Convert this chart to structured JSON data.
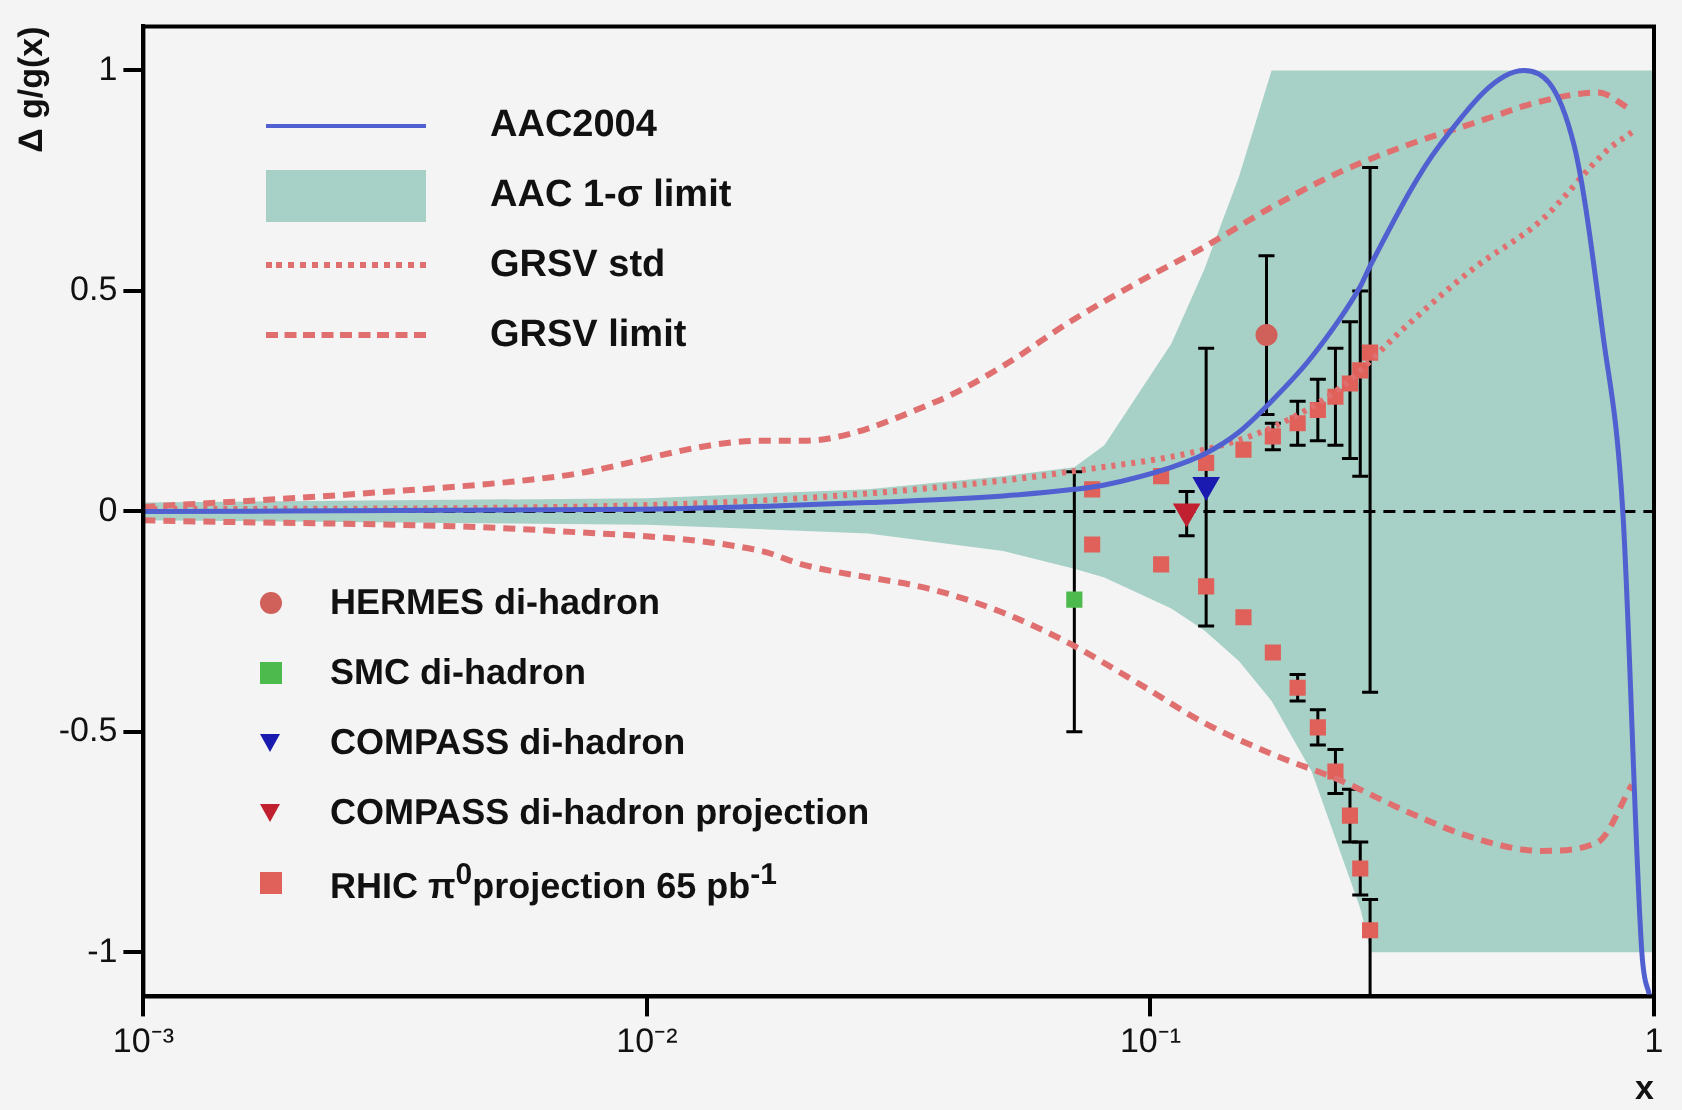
{
  "chart_data": {
    "type": "scatter",
    "xlabel": "x",
    "ylabel": "Δ g/g(x)",
    "log": "x",
    "xlim": [
      0.001,
      1
    ],
    "ylim": [
      -1.1,
      1.1
    ],
    "xticks": [
      {
        "value": 0.001,
        "label": "10⁻³"
      },
      {
        "value": 0.01,
        "label": "10⁻²"
      },
      {
        "value": 0.1,
        "label": "10⁻¹"
      },
      1
    ],
    "yticks": [
      -1,
      -0.5,
      0,
      0.5,
      1
    ],
    "grid": false,
    "legend": "left",
    "annotations": [
      "AAC 1-σ limit"
    ],
    "ref_lines": [
      {
        "axis": "y",
        "value": 0,
        "color": "#000000",
        "line_style": "dashed"
      }
    ],
    "series": [
      {
        "name": "AAC2004",
        "type": "line",
        "color": "#5060d0",
        "line_style": "solid",
        "x": [
          0.001,
          0.01,
          0.0275,
          0.051,
          0.0706,
          0.081,
          0.11,
          0.128,
          0.15,
          0.174,
          0.209,
          0.261,
          0.274,
          0.375,
          0.552,
          0.694,
          0.792,
          0.867,
          0.946,
          0.98,
          1
        ],
        "values": [
          0,
          0.005,
          0.02,
          0.035,
          0.05,
          0.06,
          0.1,
          0.13,
          0.18,
          0.25,
          0.35,
          0.51,
          0.56,
          0.83,
          1.0,
          0.83,
          0.4,
          0,
          -1.0,
          -1.1,
          null
        ],
        "lower": [
          -0.02,
          -0.03,
          -0.05,
          -0.09,
          -0.13,
          -0.15,
          -0.22,
          -0.27,
          -0.34,
          -0.43,
          -0.59,
          -0.9,
          -1,
          -1,
          -1,
          -1,
          -1,
          -1,
          -1,
          -1,
          -1
        ],
        "upper": [
          0.02,
          0.03,
          0.05,
          0.08,
          0.1,
          0.15,
          0.38,
          0.55,
          0.76,
          1,
          1,
          1,
          1,
          1,
          1,
          1,
          1,
          1,
          1,
          1,
          1
        ]
      },
      {
        "name": "GRSV std",
        "type": "line",
        "color": "#e07070",
        "line_style": "dotted",
        "x": [
          0.001,
          0.0067,
          0.0203,
          0.051,
          0.0692,
          0.128,
          0.174,
          0.238,
          0.322,
          0.437,
          0.597,
          0.809,
          0.904
        ],
        "values": [
          0.005,
          0.01,
          0.03,
          0.07,
          0.09,
          0.14,
          0.19,
          0.28,
          0.42,
          0.55,
          0.66,
          0.82,
          0.86
        ]
      },
      {
        "name": "GRSV limit",
        "type": "line",
        "color": "#e07070",
        "line_style": "dashed",
        "x": [
          0.001,
          0.00268,
          0.00673,
          0.0169,
          0.0203,
          0.0377,
          0.051,
          0.0692,
          0.0946,
          0.128,
          0.174,
          0.238,
          0.322,
          0.437,
          0.597,
          0.773,
          0.904
        ],
        "values": [
          0.01,
          0.04,
          0.08,
          0.16,
          0.16,
          0.25,
          0.33,
          0.43,
          0.52,
          0.6,
          0.69,
          0.77,
          0.83,
          0.88,
          0.93,
          0.95,
          0.91
        ]
      },
      {
        "type": "line",
        "color": "#e07070",
        "line_style": "dashed",
        "x": [
          0.001,
          0.00673,
          0.0169,
          0.0203,
          0.0377,
          0.051,
          0.0692,
          0.0946,
          0.128,
          0.174,
          0.238,
          0.322,
          0.437,
          0.597,
          0.773,
          0.904
        ],
        "values": [
          -0.02,
          -0.045,
          -0.09,
          -0.12,
          -0.18,
          -0.23,
          -0.3,
          -0.39,
          -0.48,
          -0.55,
          -0.61,
          -0.68,
          -0.74,
          -0.77,
          -0.75,
          -0.62
        ]
      },
      {
        "name": "HERMES di-hadron",
        "type": "scatter",
        "marker": "circle",
        "color": "#d0605a",
        "x": [
          0.17
        ],
        "values": [
          0.4
        ],
        "errors": [
          [
            0.22,
            0.58
          ]
        ]
      },
      {
        "name": "SMC di-hadron",
        "type": "scatter",
        "marker": "square",
        "color": "#4cba4c",
        "x": [
          0.0706
        ],
        "values": [
          -0.2
        ],
        "errors": [
          [
            -0.5,
            0.09
          ]
        ]
      },
      {
        "name": "COMPASS di-hadron",
        "type": "scatter",
        "marker": "triangle",
        "color": "#1a1ab0",
        "x": [
          0.129
        ],
        "values": [
          0.06
        ],
        "errors": [
          [
            -0.26,
            0.37
          ]
        ]
      },
      {
        "name": "COMPASS di-hadron projection",
        "type": "scatter",
        "marker": "triangle",
        "color": "#c02030",
        "x": [
          0.118
        ],
        "values": [
          0
        ],
        "errors": [
          [
            -0.055,
            0.045
          ]
        ]
      },
      {
        "name": "RHIC π$^{0}$projection 65 pb$^{-1}$",
        "type": "scatter",
        "marker": "square",
        "color": "#e0605a",
        "x": [
          0.0766,
          0.105,
          0.129,
          0.153,
          0.175,
          0.196,
          0.215,
          0.233,
          0.249,
          0.261,
          0.273,
          0.0766,
          0.105,
          0.129,
          0.153,
          0.175,
          0.196,
          0.215,
          0.233,
          0.249,
          0.261,
          0.273
        ],
        "values": [
          0.05,
          0.08,
          0.11,
          0.14,
          0.17,
          0.2,
          0.23,
          0.26,
          0.29,
          0.32,
          0.36,
          -0.075,
          -0.12,
          -0.17,
          -0.24,
          -0.32,
          -0.4,
          -0.49,
          -0.59,
          -0.69,
          -0.81,
          -0.95
        ],
        "errors": [
          null,
          null,
          null,
          null,
          [
            0.14,
            0.2
          ],
          [
            0.15,
            0.25
          ],
          [
            0.16,
            0.3
          ],
          [
            0.15,
            0.37
          ],
          [
            0.12,
            0.43
          ],
          [
            0.08,
            0.5
          ],
          [
            -0.41,
            0.78
          ],
          null,
          null,
          null,
          null,
          null,
          [
            -0.43,
            -0.37
          ],
          [
            -0.53,
            -0.45
          ],
          [
            -0.64,
            -0.54
          ],
          [
            -0.75,
            -0.63
          ],
          [
            -0.87,
            -0.75
          ],
          [
            -1.1,
            -0.88
          ]
        ]
      }
    ]
  }
}
